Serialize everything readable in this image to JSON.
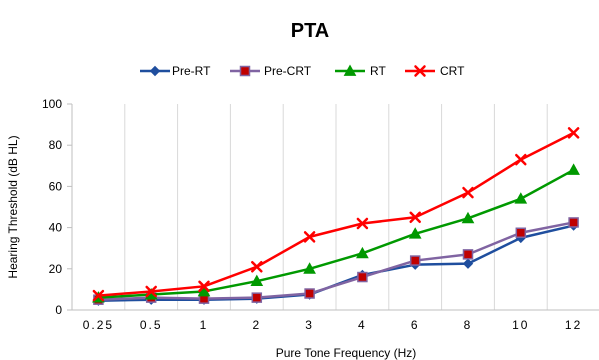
{
  "chart_data": {
    "type": "line",
    "title": "PTA",
    "xlabel": "Pure Tone Frequency (Hz)",
    "ylabel": "Hearing Threshold (dB HL)",
    "categories": [
      "0.25",
      "0.5",
      "1",
      "2",
      "3",
      "4",
      "6",
      "8",
      "10",
      "12"
    ],
    "ylim": [
      0,
      100
    ],
    "yticks": [
      0,
      20,
      40,
      60,
      80,
      100
    ],
    "grid": "vertical",
    "legend_position": "top",
    "series": [
      {
        "name": "Pre-RT",
        "color": "#1F4E9E",
        "marker": "diamond",
        "values": [
          4.5,
          5,
          5,
          5.5,
          7.5,
          17,
          22,
          22.5,
          35,
          41
        ]
      },
      {
        "name": "Pre-CRT",
        "color": "#C00000",
        "markerStroke": "#8064A2",
        "marker": "square",
        "values": [
          5,
          6,
          5.5,
          6,
          8,
          16,
          24,
          27,
          37.5,
          42.5
        ]
      },
      {
        "name": "RT",
        "color": "#009900",
        "marker": "triangle",
        "values": [
          6,
          7.5,
          9,
          14,
          20,
          27.5,
          37,
          44.5,
          54,
          68
        ]
      },
      {
        "name": "CRT",
        "color": "#FF0000",
        "marker": "x",
        "values": [
          7,
          9,
          11.5,
          21,
          35.5,
          42,
          45,
          57,
          73,
          86
        ]
      }
    ]
  }
}
